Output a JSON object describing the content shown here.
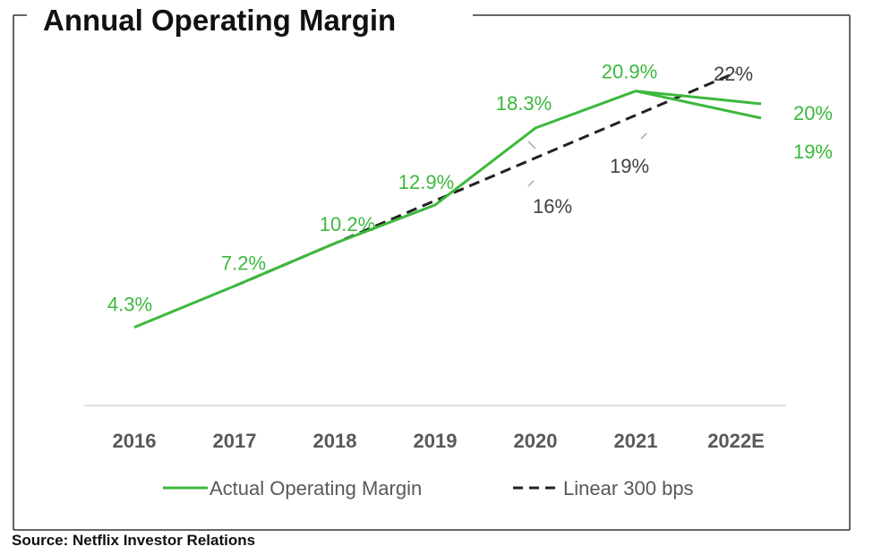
{
  "chart_data": {
    "type": "line",
    "title": "Annual Operating Margin",
    "categories": [
      "2016",
      "2017",
      "2018",
      "2019",
      "2020",
      "2021",
      "2022E"
    ],
    "ylim": [
      0,
      25
    ],
    "grid": false,
    "legend_position": "bottom",
    "series": [
      {
        "name": "Actual Operating Margin",
        "color": "#3cb83c",
        "style": "solid",
        "points": [
          {
            "x": "2016",
            "y": 4.3,
            "label": "4.3%"
          },
          {
            "x": "2017",
            "y": 7.2,
            "label": "7.2%"
          },
          {
            "x": "2018",
            "y": 10.2,
            "label": "10.2%"
          },
          {
            "x": "2019",
            "y": 12.9,
            "label": "12.9%"
          },
          {
            "x": "2020",
            "y": 18.3,
            "label": "18.3%"
          },
          {
            "x": "2021",
            "y": 20.9,
            "label": "20.9%"
          }
        ],
        "outlook": [
          {
            "x": "2022E",
            "y": 20,
            "label": "20%"
          },
          {
            "x": "2022E",
            "y": 19,
            "label": "19%"
          }
        ]
      },
      {
        "name": "Linear 300 bps",
        "color": "#222222",
        "style": "dashed",
        "points": [
          {
            "x": "2017",
            "y": 7.2,
            "label": ""
          },
          {
            "x": "2018",
            "y": 10.2,
            "label": ""
          },
          {
            "x": "2019",
            "y": 13.2,
            "label": ""
          },
          {
            "x": "2020",
            "y": 16.2,
            "label": "16%"
          },
          {
            "x": "2021",
            "y": 19.2,
            "label": "19%"
          },
          {
            "x": "2022E",
            "y": 22.2,
            "label": "22%"
          }
        ]
      }
    ]
  },
  "source": "Source: Netflix Investor Relations"
}
